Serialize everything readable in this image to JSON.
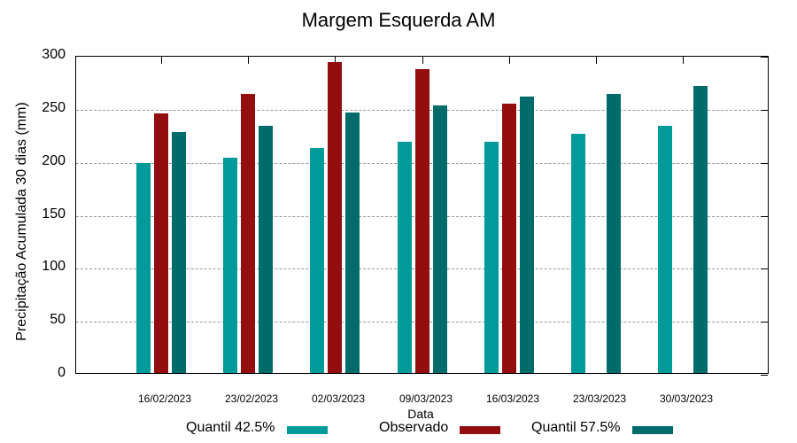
{
  "chart_data": {
    "type": "bar",
    "title": "Margem Esquerda AM",
    "xlabel": "Data",
    "ylabel": "Precipitação Acumulada 30 dias (mm)",
    "ylim": [
      0,
      300
    ],
    "yticks": [
      0,
      50,
      100,
      150,
      200,
      250,
      300
    ],
    "grid": true,
    "legend_position": "bottom",
    "categories": [
      "16/02/2023",
      "23/02/2023",
      "02/03/2023",
      "09/03/2023",
      "16/03/2023",
      "23/03/2023",
      "30/03/2023"
    ],
    "series": [
      {
        "name": "Quantil 42.5%",
        "color": "#009a9a",
        "values": [
          198,
          203,
          212,
          218,
          218,
          226,
          233
        ]
      },
      {
        "name": "Observado",
        "color": "#930f0f",
        "values": [
          245,
          263,
          293,
          287,
          254,
          null,
          null
        ]
      },
      {
        "name": "Quantil 57.5%",
        "color": "#006b6b",
        "values": [
          227,
          233,
          246,
          252,
          261,
          263,
          271
        ]
      }
    ]
  }
}
